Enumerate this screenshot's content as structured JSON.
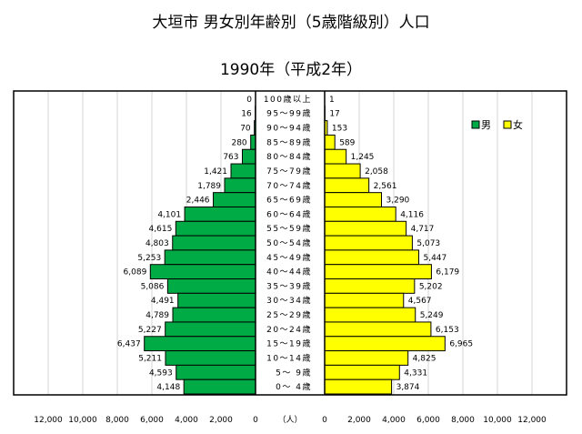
{
  "chart_data": {
    "type": "bar",
    "orientation": "horizontal-pyramid",
    "title": "大垣市 男女別年齢別（5歳階級別）人口",
    "subtitle": "1990年（平成2年）",
    "xlabel": "（人）",
    "xlim": [
      0,
      12000
    ],
    "x_ticks": [
      "12,000",
      "10,000",
      "8,000",
      "6,000",
      "4,000",
      "2,000",
      "0"
    ],
    "x_ticks_right": [
      "0",
      "2,000",
      "4,000",
      "6,000",
      "8,000",
      "10,000",
      "12,000"
    ],
    "grid": true,
    "legend_placement": "top-right",
    "categories": [
      "100歳以上",
      "95～99歳",
      "90～94歳",
      "85～89歳",
      "80～84歳",
      "75～79歳",
      "70～74歳",
      "65～69歳",
      "60～64歳",
      "55～59歳",
      "50～54歳",
      "45～49歳",
      "40～44歳",
      "35～39歳",
      "30～34歳",
      "25～29歳",
      "20～24歳",
      "15～19歳",
      "10～14歳",
      "5～ 9歳",
      "0～ 4歳"
    ],
    "series": [
      {
        "name": "男",
        "color": "#00aa44",
        "side": "left",
        "values": [
          0,
          16,
          70,
          280,
          763,
          1421,
          1789,
          2446,
          4101,
          4615,
          4803,
          5253,
          6089,
          5086,
          4491,
          4789,
          5227,
          6437,
          5211,
          4593,
          4148
        ],
        "labels": [
          "0",
          "16",
          "70",
          "280",
          "763",
          "1,421",
          "1,789",
          "2,446",
          "4,101",
          "4,615",
          "4,803",
          "5,253",
          "6,089",
          "5,086",
          "4,491",
          "4,789",
          "5,227",
          "6,437",
          "5,211",
          "4,593",
          "4,148"
        ]
      },
      {
        "name": "女",
        "color": "#ffff00",
        "side": "right",
        "values": [
          1,
          17,
          153,
          589,
          1245,
          2058,
          2561,
          3290,
          4116,
          4717,
          5073,
          5447,
          6179,
          5202,
          4567,
          5249,
          6153,
          6965,
          4825,
          4331,
          3874
        ],
        "labels": [
          "1",
          "17",
          "153",
          "589",
          "1,245",
          "2,058",
          "2,561",
          "3,290",
          "4,116",
          "4,717",
          "5,073",
          "5,447",
          "6,179",
          "5,202",
          "4,567",
          "5,249",
          "6,153",
          "6,965",
          "4,825",
          "4,331",
          "3,874"
        ]
      }
    ]
  }
}
